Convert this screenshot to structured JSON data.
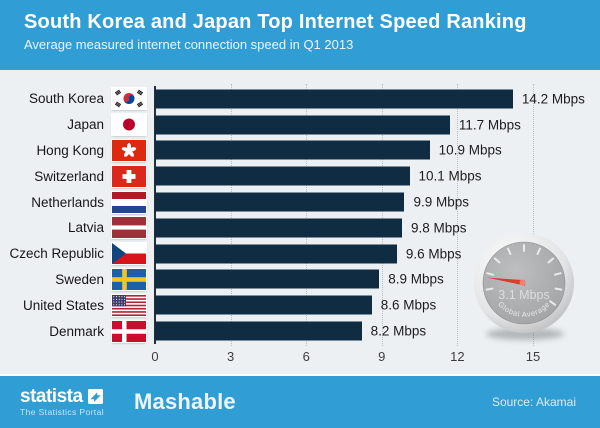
{
  "header": {
    "title": "South Korea and Japan Top Internet Speed Ranking",
    "subtitle": "Average measured internet connection speed in Q1 2013"
  },
  "chart_data": {
    "type": "bar",
    "orientation": "horizontal",
    "title": "South Korea and Japan Top Internet Speed Ranking",
    "subtitle": "Average measured internet connection speed in Q1 2013",
    "unit": "Mbps",
    "categories": [
      "South Korea",
      "Japan",
      "Hong Kong",
      "Switzerland",
      "Netherlands",
      "Latvia",
      "Czech Republic",
      "Sweden",
      "United States",
      "Denmark"
    ],
    "values": [
      14.2,
      11.7,
      10.9,
      10.1,
      9.9,
      9.8,
      9.6,
      8.9,
      8.6,
      8.2
    ],
    "value_labels": [
      "14.2 Mbps",
      "11.7 Mbps",
      "10.9 Mbps",
      "10.1 Mbps",
      "9.9 Mbps",
      "9.8 Mbps",
      "9.6 Mbps",
      "8.9 Mbps",
      "8.6 Mbps",
      "8.2 Mbps"
    ],
    "flags": [
      "kr",
      "jp",
      "hk",
      "ch",
      "nl",
      "lv",
      "cz",
      "se",
      "us",
      "dk"
    ],
    "xlim": [
      0,
      15
    ],
    "xticks": [
      0,
      3,
      6,
      9,
      12,
      15
    ],
    "grid": "vertical-dotted",
    "legend": "none",
    "annotation": {
      "gauge_value": "3.1 Mbps",
      "gauge_caption": "Global Average"
    }
  },
  "colors": {
    "accent_blue": "#309dd5",
    "bar_navy": "#102c42",
    "chart_bg": "#edf0f3",
    "needle_red": "#dd3a2c"
  },
  "footer": {
    "statista_word": "statista",
    "statista_tagline": "The Statistics Portal",
    "partner_logo": "Mashable",
    "source": "Source: Akamai"
  }
}
